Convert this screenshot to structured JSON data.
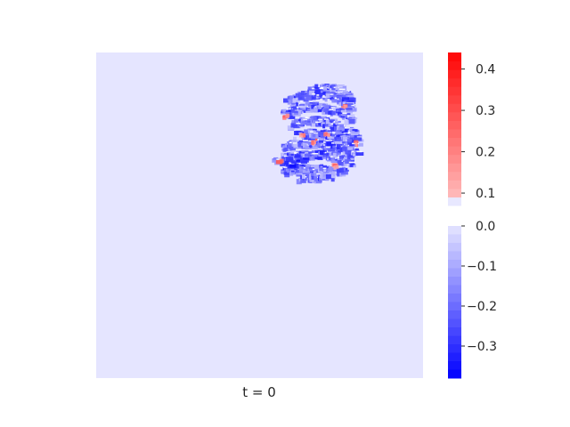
{
  "chart_data": {
    "type": "heatmap",
    "caption": "t = 0",
    "background_color": "#e5e5ff",
    "colormap": "bwr",
    "negative_color": "#0000ff",
    "positive_color": "#ff0000",
    "colorbar_positive": {
      "range": [
        0.07,
        0.44
      ],
      "ticks": [
        "0.1",
        "0.2",
        "0.3",
        "0.4"
      ],
      "tick_values": [
        0.1,
        0.2,
        0.3,
        0.4
      ]
    },
    "colorbar_negative": {
      "range": [
        -0.38,
        0.0
      ],
      "ticks": [
        "0.0",
        "−0.1",
        "−0.2",
        "−0.3"
      ],
      "tick_values": [
        0.0,
        -0.1,
        -0.2,
        -0.3
      ]
    },
    "grid": false,
    "feature": "digit-like blob of mostly negative values with small positive spots, upper-right of the panel"
  }
}
